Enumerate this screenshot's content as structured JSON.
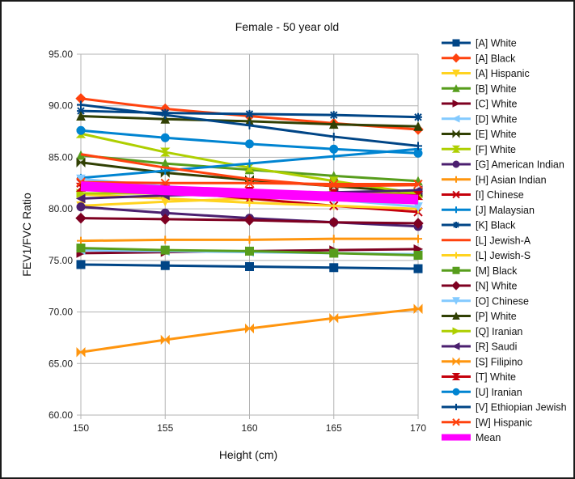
{
  "chart_data": {
    "type": "line",
    "title": "Female - 50 year old",
    "xlabel": "Height (cm)",
    "ylabel": "FEV1/FVC Ratio",
    "x": [
      150,
      155,
      160,
      165,
      170
    ],
    "xlim": [
      150,
      170
    ],
    "ylim": [
      60,
      95
    ],
    "x_ticks": [
      "150",
      "155",
      "160",
      "165",
      "170"
    ],
    "y_ticks": [
      "60.00",
      "65.00",
      "70.00",
      "75.00",
      "80.00",
      "85.00",
      "90.00",
      "95.00"
    ],
    "grid": true,
    "legend_position": "right",
    "series": [
      {
        "name": "[A] White",
        "color": "#004586",
        "marker": "square",
        "values": [
          74.6,
          74.5,
          74.4,
          74.3,
          74.2
        ]
      },
      {
        "name": "[A] Black",
        "color": "#ff420e",
        "marker": "diamond",
        "values": [
          90.7,
          89.7,
          89.0,
          88.3,
          87.7
        ]
      },
      {
        "name": "[A] Hispanic",
        "color": "#ffd320",
        "marker": "triangle-down",
        "values": [
          80.3,
          80.7,
          81.0,
          81.2,
          81.5
        ]
      },
      {
        "name": "[B] White",
        "color": "#579d1c",
        "marker": "triangle-up",
        "values": [
          85.2,
          84.4,
          83.8,
          83.2,
          82.7
        ]
      },
      {
        "name": "[C] White",
        "color": "#7e0021",
        "marker": "triangle-right",
        "values": [
          75.7,
          75.8,
          75.9,
          76.0,
          76.1
        ]
      },
      {
        "name": "[D] White",
        "color": "#83caff",
        "marker": "triangle-left",
        "values": [
          76.0,
          75.9,
          75.8,
          75.7,
          75.6
        ]
      },
      {
        "name": "[E] White",
        "color": "#314004",
        "marker": "bowtie",
        "values": [
          84.5,
          83.5,
          82.8,
          82.2,
          81.6
        ]
      },
      {
        "name": "[F] White",
        "color": "#aecf00",
        "marker": "hourglass",
        "values": [
          87.3,
          85.5,
          84.0,
          82.7,
          81.5
        ]
      },
      {
        "name": "[G] American Indian",
        "color": "#4b1f6f",
        "marker": "circle",
        "values": [
          80.2,
          79.6,
          79.1,
          78.7,
          78.3
        ]
      },
      {
        "name": "[H] Asian Indian",
        "color": "#ff950e",
        "marker": "plus",
        "values": [
          76.9,
          77.0,
          77.0,
          77.1,
          77.1
        ]
      },
      {
        "name": "[I] Chinese",
        "color": "#c5000b",
        "marker": "x",
        "values": [
          82.5,
          81.7,
          81.0,
          80.3,
          79.7
        ]
      },
      {
        "name": "[J] Malaysian",
        "color": "#0084d1",
        "marker": "plus",
        "values": [
          83.0,
          83.7,
          84.4,
          85.1,
          85.8
        ]
      },
      {
        "name": "[K] Black",
        "color": "#004586",
        "marker": "asterisk",
        "values": [
          89.5,
          89.3,
          89.2,
          89.1,
          88.9
        ]
      },
      {
        "name": "[L] Jewish-A",
        "color": "#ff420e",
        "marker": "none",
        "values": [
          85.3,
          84.0,
          82.9,
          82.2,
          82.3
        ]
      },
      {
        "name": "[L] Jewish-S",
        "color": "#ffd320",
        "marker": "plus",
        "values": [
          81.4,
          81.0,
          80.6,
          80.3,
          80.0
        ]
      },
      {
        "name": "[M] Black",
        "color": "#579d1c",
        "marker": "square",
        "values": [
          76.2,
          76.0,
          75.9,
          75.7,
          75.5
        ]
      },
      {
        "name": "[N] White",
        "color": "#7e0021",
        "marker": "diamond",
        "values": [
          79.1,
          79.0,
          78.9,
          78.7,
          78.6
        ]
      },
      {
        "name": "[O] Chinese",
        "color": "#83caff",
        "marker": "triangle-down",
        "values": [
          82.9,
          82.2,
          81.5,
          80.9,
          80.2
        ]
      },
      {
        "name": "[P] White",
        "color": "#314004",
        "marker": "triangle-up",
        "values": [
          89.0,
          88.7,
          88.5,
          88.2,
          88.0
        ]
      },
      {
        "name": "[Q] Iranian",
        "color": "#aecf00",
        "marker": "triangle-right",
        "values": [
          81.5,
          81.5,
          81.5,
          81.5,
          81.5
        ]
      },
      {
        "name": "[R] Saudi",
        "color": "#4b1f6f",
        "marker": "triangle-left",
        "values": [
          81.0,
          81.3,
          81.5,
          81.6,
          81.8
        ]
      },
      {
        "name": "[S] Filipino",
        "color": "#ff950e",
        "marker": "bowtie",
        "values": [
          66.1,
          67.3,
          68.4,
          69.4,
          70.3
        ]
      },
      {
        "name": "[T] White",
        "color": "#c5000b",
        "marker": "hourglass",
        "values": [
          82.1,
          81.9,
          81.7,
          81.5,
          81.3
        ]
      },
      {
        "name": "[U] Iranian",
        "color": "#0084d1",
        "marker": "circle",
        "values": [
          87.6,
          86.9,
          86.3,
          85.8,
          85.4
        ]
      },
      {
        "name": "[V] Ethiopian Jewish",
        "color": "#004586",
        "marker": "plus",
        "values": [
          90.1,
          89.1,
          88.1,
          87.0,
          86.1
        ]
      },
      {
        "name": "[W] Hispanic",
        "color": "#ff420e",
        "marker": "x",
        "values": [
          82.6,
          82.5,
          82.5,
          82.4,
          82.4
        ]
      },
      {
        "name": "Mean",
        "color": "#ff00ff",
        "marker": "none",
        "thick": true,
        "values": [
          82.2,
          81.8,
          81.5,
          81.2,
          80.9
        ]
      }
    ]
  }
}
